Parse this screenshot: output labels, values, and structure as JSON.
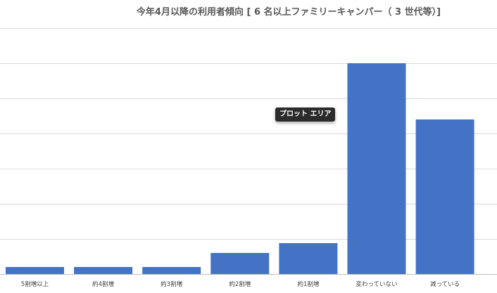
{
  "chart_data": {
    "type": "bar",
    "title": "今年4月以降の利用者傾向 [ 6 名以上ファミリーキャンパー（ 3 世代等）]",
    "categories": [
      "5割増以上",
      "約4割増",
      "約3割増",
      "約2割増",
      "約1割増",
      "変わっていない",
      "減っている"
    ],
    "values": [
      0.5,
      0.5,
      0.5,
      1.5,
      2.2,
      15.0,
      11.0
    ],
    "ylim": [
      0,
      17.5
    ],
    "grid": true,
    "bar_color": "#4472C4",
    "grid_color": "#D9D9D9"
  },
  "tooltip": {
    "label": "プロット エリア"
  }
}
